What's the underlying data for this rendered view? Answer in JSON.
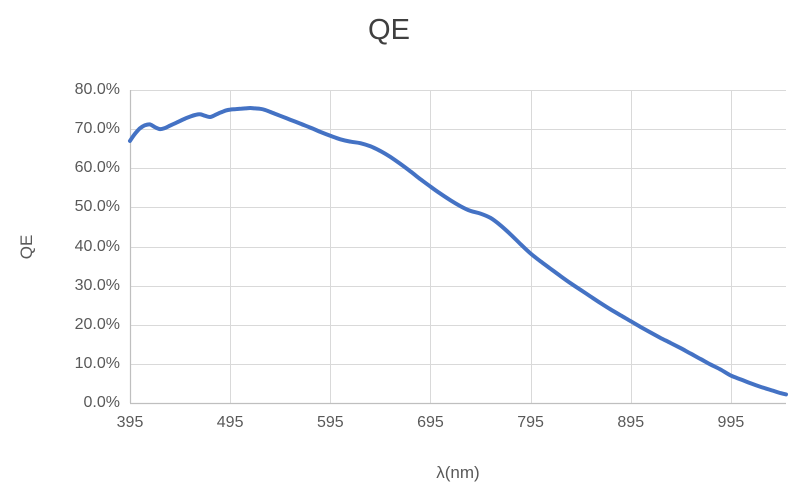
{
  "title": "QE",
  "axes": {
    "x_title": "λ(nm)",
    "y_title": "QE",
    "x_ticks": [
      {
        "label": "395",
        "value": 395
      },
      {
        "label": "495",
        "value": 495
      },
      {
        "label": "595",
        "value": 595
      },
      {
        "label": "695",
        "value": 695
      },
      {
        "label": "795",
        "value": 795
      },
      {
        "label": "895",
        "value": 895
      },
      {
        "label": "995",
        "value": 995
      }
    ],
    "y_ticks": [
      {
        "label": "0.0%",
        "value": 0
      },
      {
        "label": "10.0%",
        "value": 10
      },
      {
        "label": "20.0%",
        "value": 20
      },
      {
        "label": "30.0%",
        "value": 30
      },
      {
        "label": "40.0%",
        "value": 40
      },
      {
        "label": "50.0%",
        "value": 50
      },
      {
        "label": "60.0%",
        "value": 60
      },
      {
        "label": "70.0%",
        "value": 70
      },
      {
        "label": "80.0%",
        "value": 80
      }
    ]
  },
  "colors": {
    "line": "#4472C4",
    "gridline": "#D9D9D9",
    "axis_line": "#BFBFBF",
    "title_text": "#3f3f3f",
    "tick_text": "#595959"
  },
  "chart_data": {
    "type": "line",
    "title": "QE",
    "xlabel": "λ(nm)",
    "ylabel": "QE",
    "xlim": [
      395,
      1050
    ],
    "ylim": [
      0,
      80
    ],
    "y_unit": "percent",
    "grid": true,
    "legend": false,
    "smooth": true,
    "series": [
      {
        "name": "QE",
        "x": [
          395,
          400,
          405,
          410,
          415,
          420,
          425,
          430,
          435,
          440,
          445,
          450,
          455,
          460,
          465,
          470,
          475,
          480,
          485,
          490,
          495,
          500,
          505,
          510,
          515,
          520,
          525,
          530,
          535,
          540,
          545,
          555,
          565,
          575,
          585,
          595,
          605,
          615,
          625,
          635,
          645,
          655,
          665,
          675,
          685,
          695,
          705,
          715,
          725,
          735,
          745,
          755,
          765,
          775,
          785,
          795,
          805,
          815,
          825,
          835,
          845,
          855,
          865,
          875,
          885,
          895,
          905,
          915,
          925,
          935,
          945,
          955,
          965,
          975,
          985,
          995,
          1005,
          1015,
          1025,
          1035,
          1045,
          1050
        ],
        "y": [
          67.0,
          68.8,
          70.2,
          71.0,
          71.2,
          70.5,
          70.0,
          70.3,
          70.9,
          71.5,
          72.1,
          72.7,
          73.2,
          73.6,
          73.8,
          73.4,
          73.1,
          73.6,
          74.2,
          74.7,
          75.0,
          75.1,
          75.2,
          75.3,
          75.4,
          75.3,
          75.2,
          74.9,
          74.4,
          73.9,
          73.4,
          72.4,
          71.4,
          70.4,
          69.3,
          68.3,
          67.4,
          66.8,
          66.4,
          65.6,
          64.4,
          62.9,
          61.1,
          59.2,
          57.2,
          55.3,
          53.5,
          51.8,
          50.3,
          49.1,
          48.4,
          47.3,
          45.4,
          43.1,
          40.6,
          38.2,
          36.2,
          34.3,
          32.4,
          30.6,
          28.9,
          27.2,
          25.5,
          23.9,
          22.4,
          20.9,
          19.4,
          18.0,
          16.6,
          15.3,
          14.0,
          12.6,
          11.2,
          9.8,
          8.5,
          7.0,
          6.0,
          5.0,
          4.1,
          3.3,
          2.5,
          2.2
        ]
      }
    ]
  }
}
